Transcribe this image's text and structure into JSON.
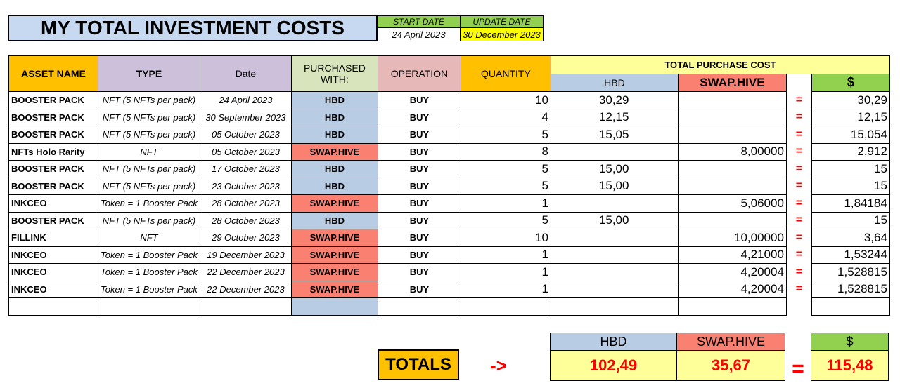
{
  "title": "MY TOTAL INVESTMENT COSTS",
  "start_date_label": "START DATE",
  "start_date": "24 April 2023",
  "update_date_label": "UPDATE DATE",
  "update_date": "30 December 2023",
  "headers": {
    "asset": "ASSET NAME",
    "type": "TYPE",
    "date": "Date",
    "purchased_with": "PURCHASED WITH:",
    "operation": "OPERATION",
    "quantity": "QUANTITY",
    "total_purchase_cost": "TOTAL PURCHASE COST",
    "hbd": "HBD",
    "swap_hive": "SWAP.HIVE",
    "usd": "$"
  },
  "rows": [
    {
      "asset": "BOOSTER PACK",
      "type": "NFT (5 NFTs per pack)",
      "date": "24 April 2023",
      "purchased": "HBD",
      "op": "BUY",
      "qty": "10",
      "hbd": "30,29",
      "swap": "",
      "eq": "=",
      "usd": "30,29"
    },
    {
      "asset": "BOOSTER PACK",
      "type": "NFT (5 NFTs per pack)",
      "date": "30 September 2023",
      "purchased": "HBD",
      "op": "BUY",
      "qty": "4",
      "hbd": "12,15",
      "swap": "",
      "eq": "=",
      "usd": "12,15"
    },
    {
      "asset": "BOOSTER PACK",
      "type": "NFT (5 NFTs per pack)",
      "date": "05 October 2023",
      "purchased": "HBD",
      "op": "BUY",
      "qty": "5",
      "hbd": "15,05",
      "swap": "",
      "eq": "=",
      "usd": "15,054"
    },
    {
      "asset": "NFTs Holo Rarity",
      "type": "NFT",
      "date": "05 October 2023",
      "purchased": "SWAP.HIVE",
      "op": "BUY",
      "qty": "8",
      "hbd": "",
      "swap": "8,00000",
      "eq": "=",
      "usd": "2,912"
    },
    {
      "asset": "BOOSTER PACK",
      "type": "NFT (5 NFTs per pack)",
      "date": "17 October 2023",
      "purchased": "HBD",
      "op": "BUY",
      "qty": "5",
      "hbd": "15,00",
      "swap": "",
      "eq": "=",
      "usd": "15"
    },
    {
      "asset": "BOOSTER PACK",
      "type": "NFT (5 NFTs per pack)",
      "date": "23 October 2023",
      "purchased": "HBD",
      "op": "BUY",
      "qty": "5",
      "hbd": "15,00",
      "swap": "",
      "eq": "=",
      "usd": "15"
    },
    {
      "asset": "INKCEO",
      "type": "Token = 1 Booster Pack",
      "date": "28 October 2023",
      "purchased": "SWAP.HIVE",
      "op": "BUY",
      "qty": "1",
      "hbd": "",
      "swap": "5,06000",
      "eq": "=",
      "usd": "1,84184"
    },
    {
      "asset": "BOOSTER PACK",
      "type": "NFT (5 NFTs per pack)",
      "date": "28 October 2023",
      "purchased": "HBD",
      "op": "BUY",
      "qty": "5",
      "hbd": "15,00",
      "swap": "",
      "eq": "=",
      "usd": "15"
    },
    {
      "asset": "FILLINK",
      "type": "NFT",
      "date": "29 October 2023",
      "purchased": "SWAP.HIVE",
      "op": "BUY",
      "qty": "10",
      "hbd": "",
      "swap": "10,00000",
      "eq": "=",
      "usd": "3,64"
    },
    {
      "asset": "INKCEO",
      "type": "Token = 1 Booster Pack",
      "date": "19 December 2023",
      "purchased": "SWAP.HIVE",
      "op": "BUY",
      "qty": "1",
      "hbd": "",
      "swap": "4,21000",
      "eq": "=",
      "usd": "1,53244"
    },
    {
      "asset": "INKCEO",
      "type": "Token = 1 Booster Pack",
      "date": "22 December 2023",
      "purchased": "SWAP.HIVE",
      "op": "BUY",
      "qty": "1",
      "hbd": "",
      "swap": "4,20004",
      "eq": "=",
      "usd": "1,528815"
    },
    {
      "asset": "INKCEO",
      "type": "Token = 1 Booster Pack",
      "date": "22 December 2023",
      "purchased": "SWAP.HIVE",
      "op": "BUY",
      "qty": "1",
      "hbd": "",
      "swap": "4,20004",
      "eq": "=",
      "usd": "1,528815"
    },
    {
      "asset": "",
      "type": "",
      "date": "",
      "purchased": "",
      "op": "",
      "qty": "",
      "hbd": "",
      "swap": "",
      "eq": "",
      "usd": ""
    }
  ],
  "totals": {
    "label": "TOTALS",
    "arrow": "->",
    "hbd_label": "HBD",
    "swap_label": "SWAP.HIVE",
    "usd_label": "$",
    "equals": "=",
    "hbd": "102,49",
    "swap": "35,67",
    "usd": "115,48"
  },
  "colors": {
    "hbd": "#b8cce4",
    "swap_hive": "#fa8072",
    "usd": "#92d050",
    "asset": "#ffc000",
    "type": "#ccc0da"
  }
}
